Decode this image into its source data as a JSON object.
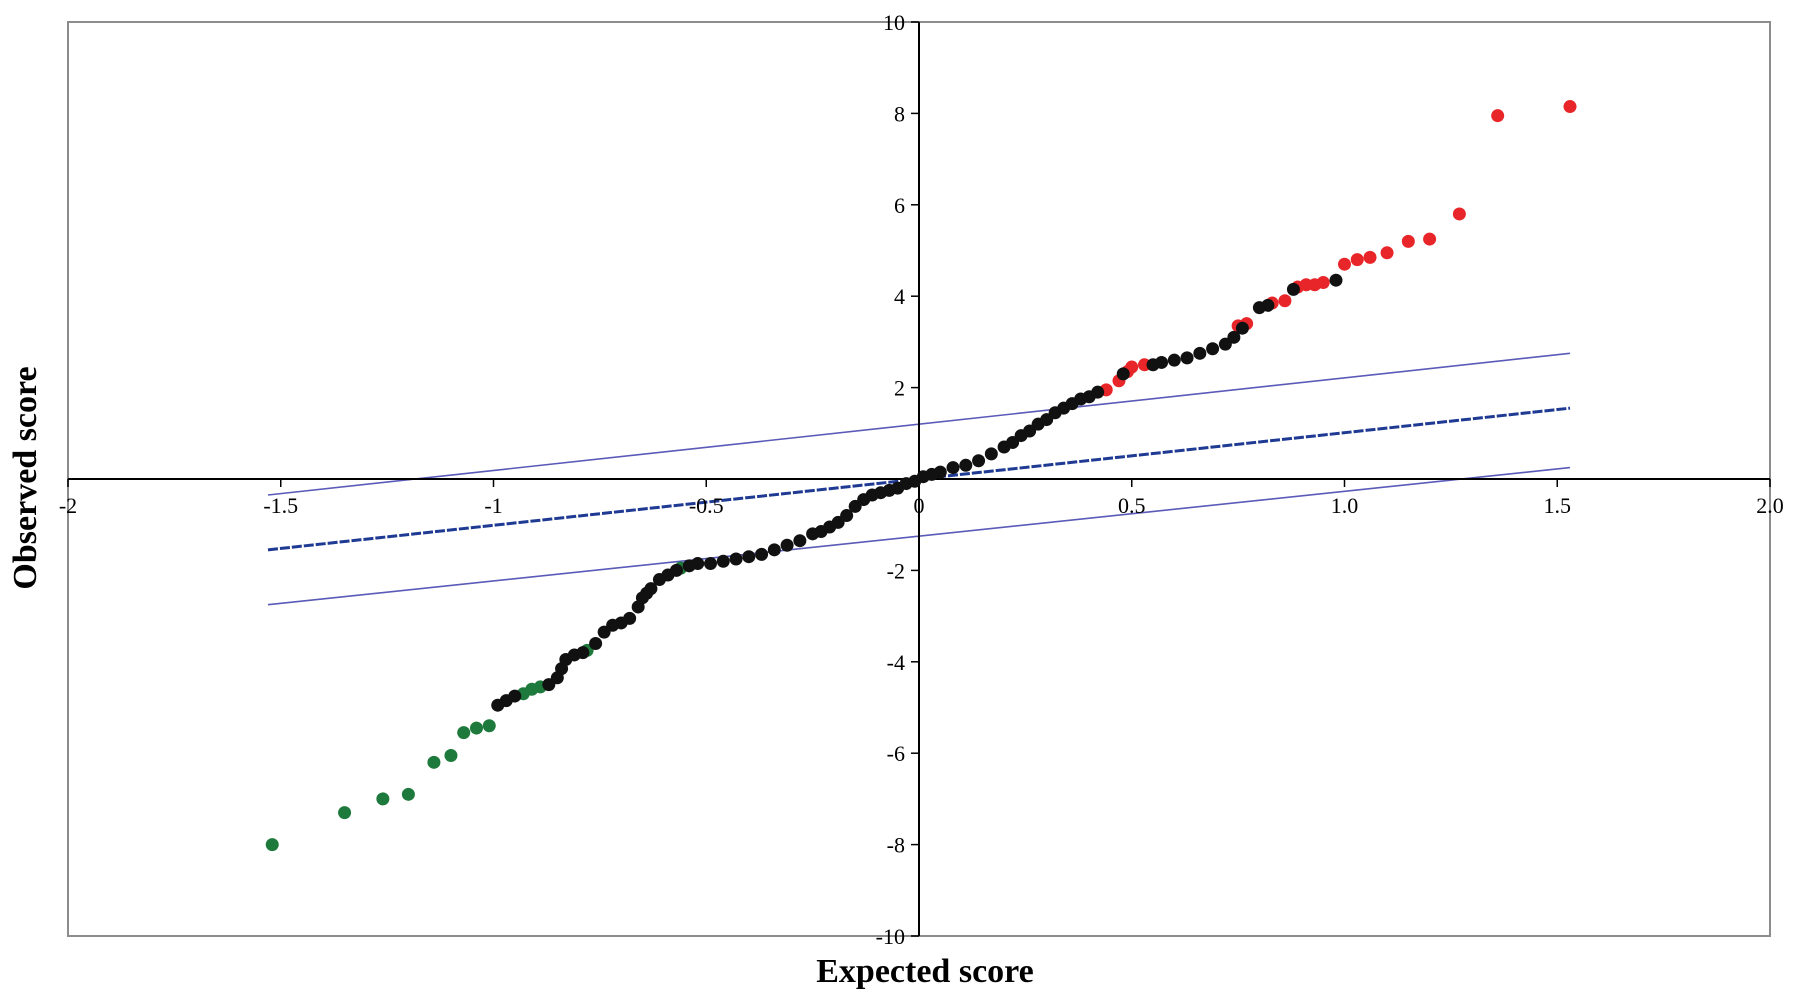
{
  "chart_data": {
    "type": "scatter",
    "title": "",
    "xlabel": "Expected score",
    "ylabel": "Observed score",
    "xlim": [
      -2,
      2
    ],
    "ylim": [
      -10,
      10
    ],
    "x_ticks": [
      "-2",
      "-1.5",
      "-1",
      "-0.5",
      "0",
      "0.5",
      "1.0",
      "1.5",
      "2.0"
    ],
    "y_ticks": [
      "-10",
      "-8",
      "-6",
      "-4",
      "-2",
      "2",
      "4",
      "6",
      "8",
      "10"
    ],
    "x_tick_values": [
      -2,
      -1.5,
      -1,
      -0.5,
      0,
      0.5,
      1,
      1.5,
      2
    ],
    "y_tick_values": [
      -10,
      -8,
      -6,
      -4,
      -2,
      2,
      4,
      6,
      8,
      10
    ],
    "grid": false,
    "colors": {
      "up_regulated": "#e8262a",
      "down_regulated": "#1e7a3c",
      "unchanged": "#111111",
      "reference_line": "#1f3a93",
      "threshold_lines": "#5a5ab8"
    },
    "lines": [
      {
        "x": [
          -1.53,
          1.53
        ],
        "y": [
          -1.55,
          1.55
        ],
        "style": "dashed-thick",
        "color": "#1f3a93"
      },
      {
        "x": [
          -1.53,
          1.53
        ],
        "y": [
          -0.35,
          2.75
        ],
        "style": "solid-thin",
        "color": "#5a5ab8"
      },
      {
        "x": [
          -1.53,
          1.53
        ],
        "y": [
          -2.75,
          0.25
        ],
        "style": "solid-thin",
        "color": "#5a5ab8"
      }
    ],
    "series": [
      {
        "color": "#e8262a",
        "points": [
          [
            0.44,
            1.95
          ],
          [
            0.47,
            2.15
          ],
          [
            0.49,
            2.35
          ],
          [
            0.5,
            2.45
          ],
          [
            0.53,
            2.5
          ],
          [
            0.75,
            3.35
          ],
          [
            0.77,
            3.4
          ],
          [
            0.83,
            3.85
          ],
          [
            0.86,
            3.9
          ],
          [
            0.89,
            4.2
          ],
          [
            0.91,
            4.25
          ],
          [
            0.93,
            4.25
          ],
          [
            0.95,
            4.3
          ],
          [
            1.0,
            4.7
          ],
          [
            1.03,
            4.8
          ],
          [
            1.06,
            4.85
          ],
          [
            1.1,
            4.95
          ],
          [
            1.15,
            5.2
          ],
          [
            1.2,
            5.25
          ],
          [
            1.27,
            5.8
          ],
          [
            1.36,
            7.95
          ],
          [
            1.53,
            8.15
          ]
        ]
      },
      {
        "color": "#1e7a3c",
        "points": [
          [
            -1.52,
            -8.0
          ],
          [
            -1.35,
            -7.3
          ],
          [
            -1.26,
            -7.0
          ],
          [
            -1.2,
            -6.9
          ],
          [
            -1.14,
            -6.2
          ],
          [
            -1.1,
            -6.05
          ],
          [
            -1.07,
            -5.55
          ],
          [
            -1.04,
            -5.45
          ],
          [
            -1.01,
            -5.4
          ],
          [
            -0.93,
            -4.7
          ],
          [
            -0.91,
            -4.6
          ],
          [
            -0.89,
            -4.55
          ],
          [
            -0.78,
            -3.75
          ],
          [
            -0.56,
            -1.95
          ]
        ]
      },
      {
        "color": "#111111",
        "points": [
          [
            -0.99,
            -4.95
          ],
          [
            -0.97,
            -4.85
          ],
          [
            -0.95,
            -4.75
          ],
          [
            -0.87,
            -4.5
          ],
          [
            -0.85,
            -4.35
          ],
          [
            -0.84,
            -4.15
          ],
          [
            -0.83,
            -3.95
          ],
          [
            -0.81,
            -3.85
          ],
          [
            -0.79,
            -3.8
          ],
          [
            -0.76,
            -3.6
          ],
          [
            -0.74,
            -3.35
          ],
          [
            -0.72,
            -3.2
          ],
          [
            -0.7,
            -3.15
          ],
          [
            -0.68,
            -3.05
          ],
          [
            -0.66,
            -2.8
          ],
          [
            -0.65,
            -2.6
          ],
          [
            -0.64,
            -2.5
          ],
          [
            -0.63,
            -2.4
          ],
          [
            -0.61,
            -2.2
          ],
          [
            -0.59,
            -2.1
          ],
          [
            -0.57,
            -2.0
          ],
          [
            -0.54,
            -1.9
          ],
          [
            -0.52,
            -1.85
          ],
          [
            -0.49,
            -1.85
          ],
          [
            -0.46,
            -1.8
          ],
          [
            -0.43,
            -1.75
          ],
          [
            -0.4,
            -1.7
          ],
          [
            -0.37,
            -1.65
          ],
          [
            -0.34,
            -1.55
          ],
          [
            -0.31,
            -1.45
          ],
          [
            -0.28,
            -1.35
          ],
          [
            -0.25,
            -1.2
          ],
          [
            -0.23,
            -1.15
          ],
          [
            -0.21,
            -1.05
          ],
          [
            -0.19,
            -0.95
          ],
          [
            -0.17,
            -0.8
          ],
          [
            -0.15,
            -0.6
          ],
          [
            -0.13,
            -0.45
          ],
          [
            -0.11,
            -0.35
          ],
          [
            -0.09,
            -0.3
          ],
          [
            -0.07,
            -0.25
          ],
          [
            -0.05,
            -0.2
          ],
          [
            -0.03,
            -0.1
          ],
          [
            -0.01,
            -0.05
          ],
          [
            0.01,
            0.05
          ],
          [
            0.03,
            0.1
          ],
          [
            0.05,
            0.15
          ],
          [
            0.08,
            0.25
          ],
          [
            0.11,
            0.3
          ],
          [
            0.14,
            0.4
          ],
          [
            0.17,
            0.55
          ],
          [
            0.2,
            0.7
          ],
          [
            0.22,
            0.8
          ],
          [
            0.24,
            0.95
          ],
          [
            0.26,
            1.05
          ],
          [
            0.28,
            1.2
          ],
          [
            0.3,
            1.3
          ],
          [
            0.32,
            1.45
          ],
          [
            0.34,
            1.55
          ],
          [
            0.36,
            1.65
          ],
          [
            0.38,
            1.75
          ],
          [
            0.4,
            1.8
          ],
          [
            0.42,
            1.9
          ],
          [
            0.48,
            2.3
          ],
          [
            0.55,
            2.5
          ],
          [
            0.57,
            2.55
          ],
          [
            0.6,
            2.6
          ],
          [
            0.63,
            2.65
          ],
          [
            0.66,
            2.75
          ],
          [
            0.69,
            2.85
          ],
          [
            0.72,
            2.95
          ],
          [
            0.74,
            3.1
          ],
          [
            0.76,
            3.3
          ],
          [
            0.8,
            3.75
          ],
          [
            0.82,
            3.8
          ],
          [
            0.88,
            4.15
          ],
          [
            0.98,
            4.35
          ]
        ]
      }
    ]
  }
}
